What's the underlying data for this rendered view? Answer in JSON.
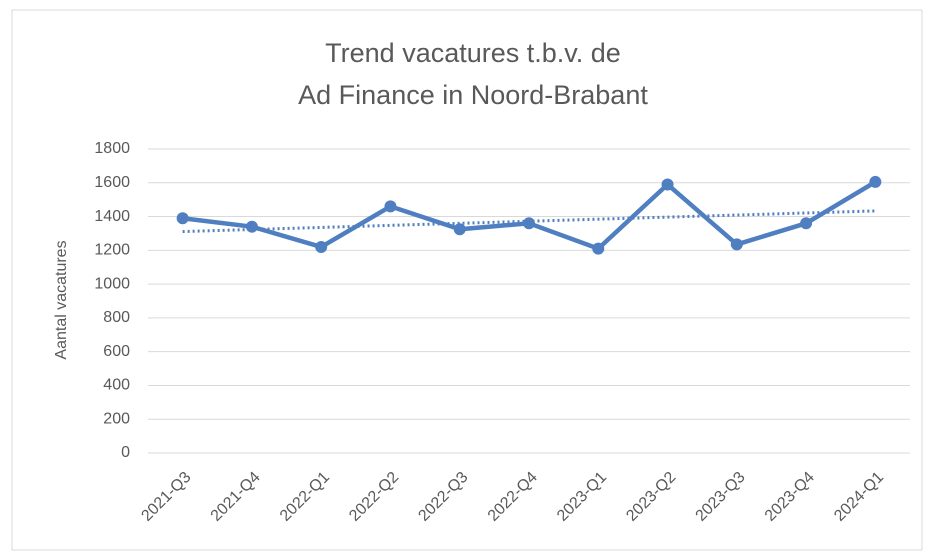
{
  "chart_data": {
    "type": "line",
    "title": [
      "Trend vacatures t.b.v. de",
      "Ad Finance in Noord-Brabant"
    ],
    "y_label": "Aantal vacatures",
    "categories": [
      "2021-Q3",
      "2021-Q4",
      "2022-Q1",
      "2022-Q2",
      "2022-Q3",
      "2022-Q4",
      "2023-Q1",
      "2023-Q2",
      "2023-Q3",
      "2023-Q4",
      "2024-Q1"
    ],
    "values": [
      1390,
      1340,
      1220,
      1460,
      1325,
      1360,
      1210,
      1590,
      1235,
      1360,
      1605
    ],
    "color": "#4f7fc0",
    "trendline": "linear",
    "ylim": [
      0,
      1800
    ],
    "yticks": [
      0,
      200,
      400,
      600,
      800,
      1000,
      1200,
      1400,
      1600,
      1800
    ],
    "grid": true
  }
}
